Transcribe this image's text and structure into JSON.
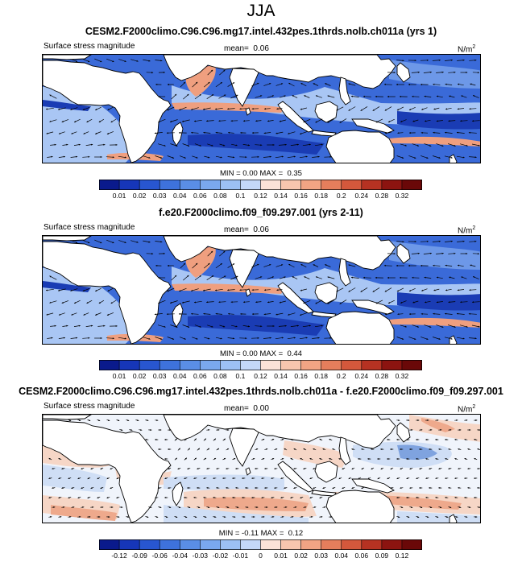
{
  "figure": {
    "title": "JJA"
  },
  "panels": [
    {
      "title": "CESM2.F2000climo.C96.C96.mg17.intel.432pes.1thrds.nolb.ch011a (yrs 1)",
      "variable_label": "Surface stress magnitude",
      "mean_label": "mean=",
      "mean_value": "0.06",
      "units_base": "N/m",
      "units_exp": "2",
      "min_label": "MIN =",
      "min_value": "0.00",
      "max_label": "MAX =",
      "max_value": "0.35",
      "colorbar_ticks": [
        "0.01",
        "0.02",
        "0.03",
        "0.04",
        "0.06",
        "0.08",
        "0.1",
        "0.12",
        "0.14",
        "0.16",
        "0.18",
        "0.2",
        "0.24",
        "0.28",
        "0.32"
      ],
      "map_kind": "abs"
    },
    {
      "title": "f.e20.F2000climo.f09_f09.297.001 (yrs 2-11)",
      "variable_label": "Surface stress magnitude",
      "mean_label": "mean=",
      "mean_value": "0.06",
      "units_base": "N/m",
      "units_exp": "2",
      "min_label": "MIN =",
      "min_value": "0.00",
      "max_label": "MAX =",
      "max_value": "0.44",
      "colorbar_ticks": [
        "0.01",
        "0.02",
        "0.03",
        "0.04",
        "0.06",
        "0.08",
        "0.1",
        "0.12",
        "0.14",
        "0.16",
        "0.18",
        "0.2",
        "0.24",
        "0.28",
        "0.32"
      ],
      "map_kind": "abs"
    },
    {
      "title": "CESM2.F2000climo.C96.C96.mg17.intel.432pes.1thrds.nolb.ch011a - f.e20.F2000climo.f09_f09.297.001",
      "variable_label": "Surface stress magnitude",
      "mean_label": "mean=",
      "mean_value": "0.00",
      "units_base": "N/m",
      "units_exp": "2",
      "min_label": "MIN =",
      "min_value": "-0.11",
      "max_label": "MAX =",
      "max_value": "0.12",
      "colorbar_ticks": [
        "-0.12",
        "-0.09",
        "-0.06",
        "-0.04",
        "-0.03",
        "-0.02",
        "-0.01",
        "0",
        "0.01",
        "0.02",
        "0.03",
        "0.04",
        "0.06",
        "0.09",
        "0.12"
      ],
      "map_kind": "diff"
    }
  ],
  "colorbar_colors": [
    "#0a1a8c",
    "#1636b8",
    "#2856d0",
    "#3e72dc",
    "#5a8ee6",
    "#7aa8ee",
    "#9cc0f4",
    "#c4d8f8",
    "#fbe2d8",
    "#f8c6ae",
    "#f2a484",
    "#e67e5c",
    "#d4583c",
    "#b63222",
    "#8c1410",
    "#6a0808"
  ],
  "colors": {
    "land": "#ffffff",
    "vector": "#000000",
    "abs_base": "#3a6ad8",
    "abs_mid": "#6d98e8",
    "abs_light": "#a9c6f4",
    "abs_dark": "#1a3cb4",
    "abs_warm": "#ef9f7f",
    "abs_hot": "#d2442a",
    "diff_base": "#f0f4fb",
    "diff_lightblue": "#cfdef5",
    "diff_blue": "#7fa3df",
    "diff_lightred": "#f6d6c6",
    "diff_red": "#eea98c"
  }
}
